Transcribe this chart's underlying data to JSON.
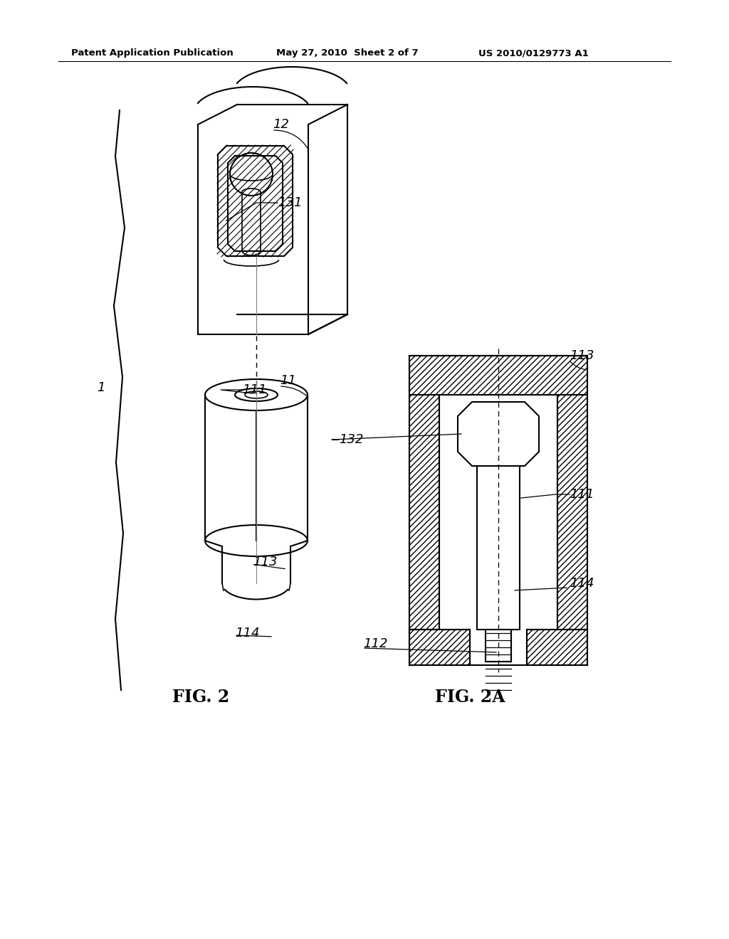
{
  "background_color": "#ffffff",
  "header_left": "Patent Application Publication",
  "header_center": "May 27, 2010  Sheet 2 of 7",
  "header_right": "US 2010/0129773 A1",
  "fig2_label": "FIG. 2",
  "fig2a_label": "FIG. 2A",
  "label_1": "1",
  "label_12": "12",
  "label_11": "11",
  "label_111_left": "111",
  "label_111_right": "111",
  "label_113_left": "113",
  "label_113_right": "113",
  "label_114_left": "114",
  "label_114_right": "114",
  "label_131": "131",
  "label_132": "132",
  "label_112": "112"
}
